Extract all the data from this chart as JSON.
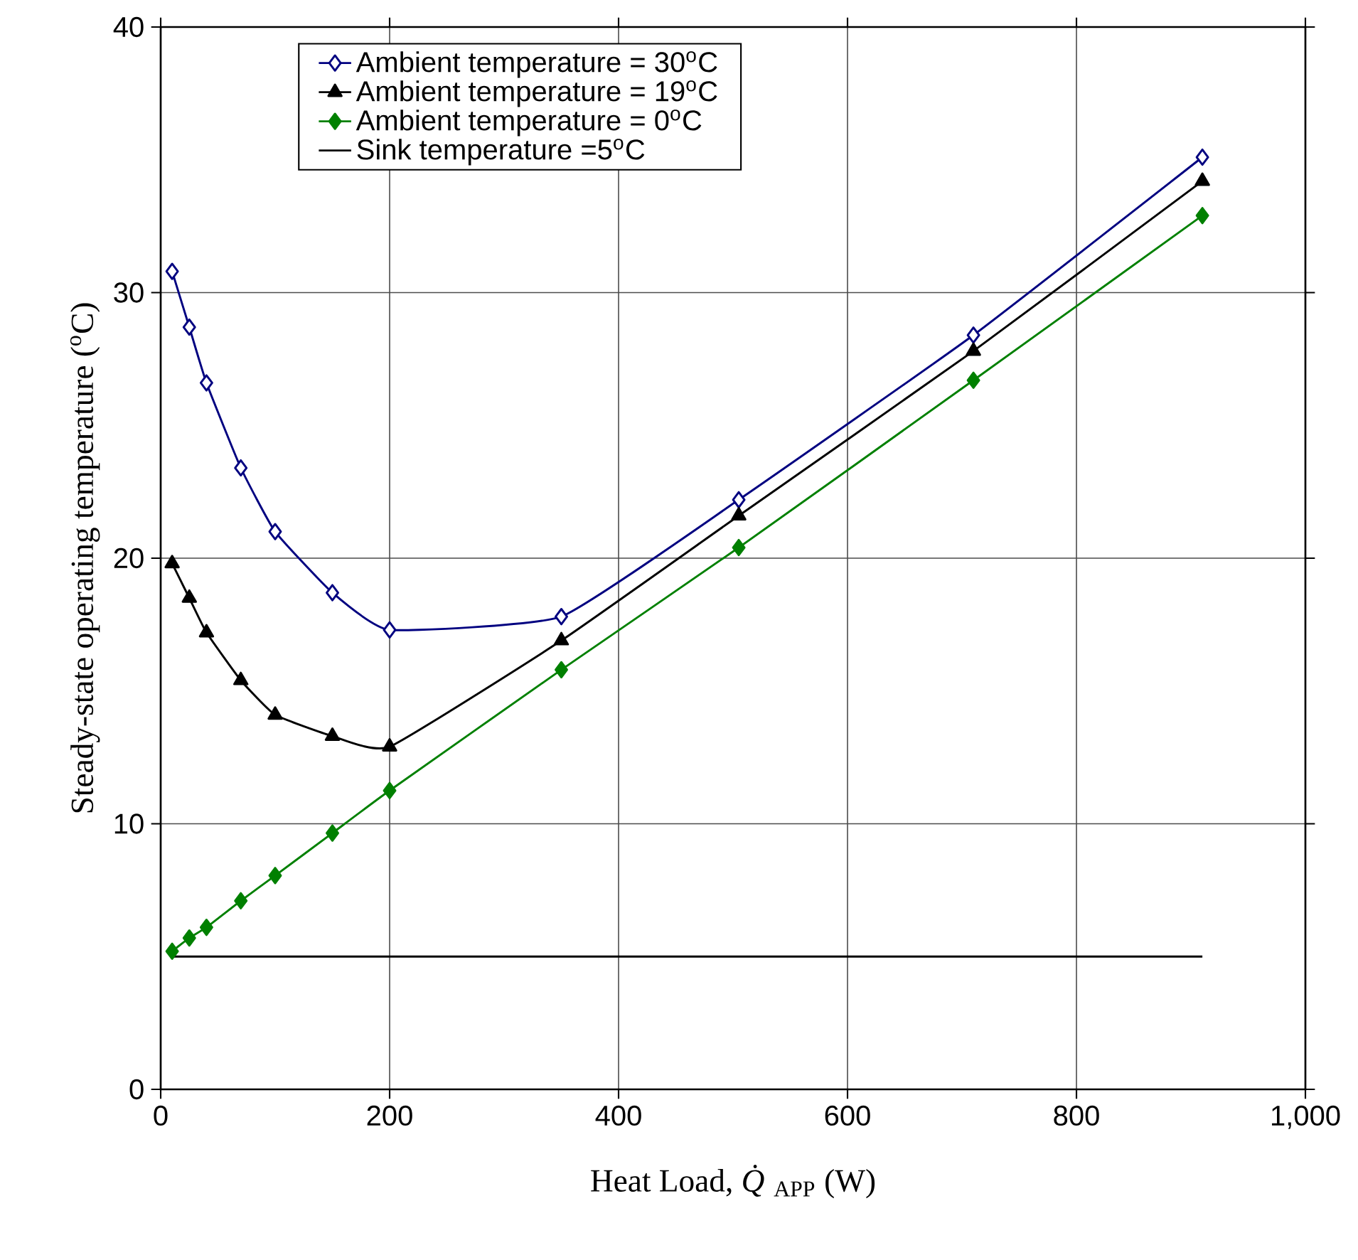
{
  "chart_data": {
    "type": "line",
    "xlabel": "Heat Load, *Q̇*$_{APP}$ (W)",
    "ylabel": "Steady-state operating temperature ($^{o}$C)",
    "xlim": [
      0,
      1000
    ],
    "ylim": [
      0,
      40
    ],
    "xticks": [
      0,
      200,
      400,
      600,
      800,
      {
        "value": 1000,
        "label": "1,000"
      }
    ],
    "yticks": [
      0,
      10,
      20,
      30,
      40
    ],
    "grid": true,
    "legend": "top left",
    "series": [
      {
        "name": "Ambient temperature = 30$^{o}$C",
        "color": "#000080",
        "marker": "diamond",
        "x": [
          10,
          25,
          40,
          70,
          100,
          150,
          200,
          350,
          505,
          710,
          910
        ],
        "values": [
          30.8,
          28.7,
          26.6,
          23.4,
          21.0,
          18.7,
          17.3,
          17.8,
          22.2,
          28.4,
          35.1
        ]
      },
      {
        "name": "Ambient temperature = 19$^{o}$C",
        "color": "#000000",
        "marker": "triangle",
        "x": [
          10,
          25,
          40,
          70,
          100,
          150,
          200,
          350,
          505,
          710,
          910
        ],
        "values": [
          19.8,
          18.5,
          17.2,
          15.4,
          14.1,
          13.3,
          12.9,
          16.9,
          21.6,
          27.8,
          34.2
        ]
      },
      {
        "name": "Ambient temperature = 0$^{o}$C",
        "color": "#008000",
        "marker": "diamond",
        "x": [
          10,
          25,
          40,
          70,
          100,
          150,
          200,
          350,
          505,
          710,
          910
        ],
        "values": [
          5.2,
          5.7,
          6.1,
          7.1,
          8.05,
          9.65,
          11.25,
          15.8,
          20.4,
          26.7,
          32.9
        ]
      },
      {
        "name": "Sink temperature =5$^{o}$C",
        "color": "#000000",
        "marker": "none",
        "x": [
          10,
          910
        ],
        "values": [
          5,
          5
        ]
      }
    ]
  }
}
